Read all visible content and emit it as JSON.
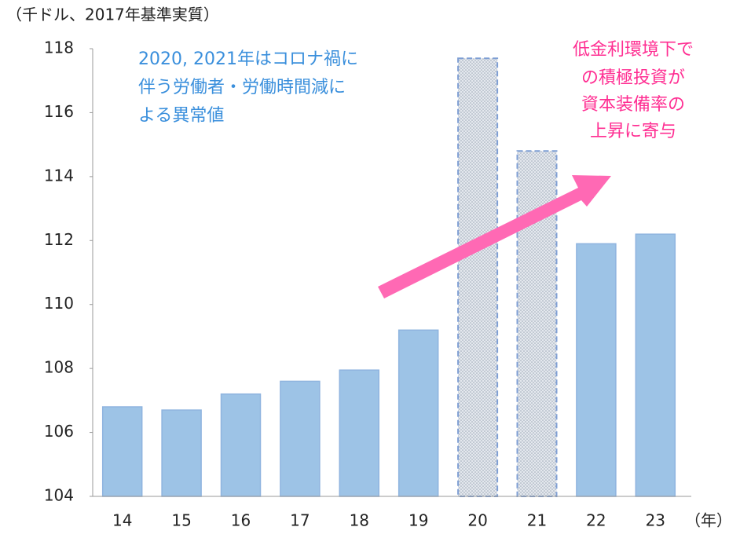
{
  "chart_data": {
    "type": "bar",
    "y_axis_label": "（千ドル、2017年基準実質）",
    "x_axis_label": "（年）",
    "categories": [
      "14",
      "15",
      "16",
      "17",
      "18",
      "19",
      "20",
      "21",
      "22",
      "23"
    ],
    "values": [
      106.8,
      106.7,
      107.2,
      107.6,
      107.95,
      109.2,
      117.7,
      114.8,
      111.9,
      112.2
    ],
    "bar_styles": [
      "solid",
      "solid",
      "solid",
      "solid",
      "solid",
      "solid",
      "dotted",
      "dotted",
      "solid",
      "solid"
    ],
    "color": "#9dc3e6",
    "ylim": [
      104,
      118
    ],
    "yticks": [
      104,
      106,
      108,
      110,
      112,
      114,
      116,
      118
    ],
    "grid": false,
    "annotations": [
      {
        "lines": [
          "2020, 2021年はコロナ禍に",
          "伴う労働者・労働時間減に",
          "よる異常値"
        ]
      },
      {
        "lines": [
          "低金利環境下で",
          "の積極投資が",
          "資本装備率の",
          "上昇に寄与"
        ]
      }
    ]
  }
}
